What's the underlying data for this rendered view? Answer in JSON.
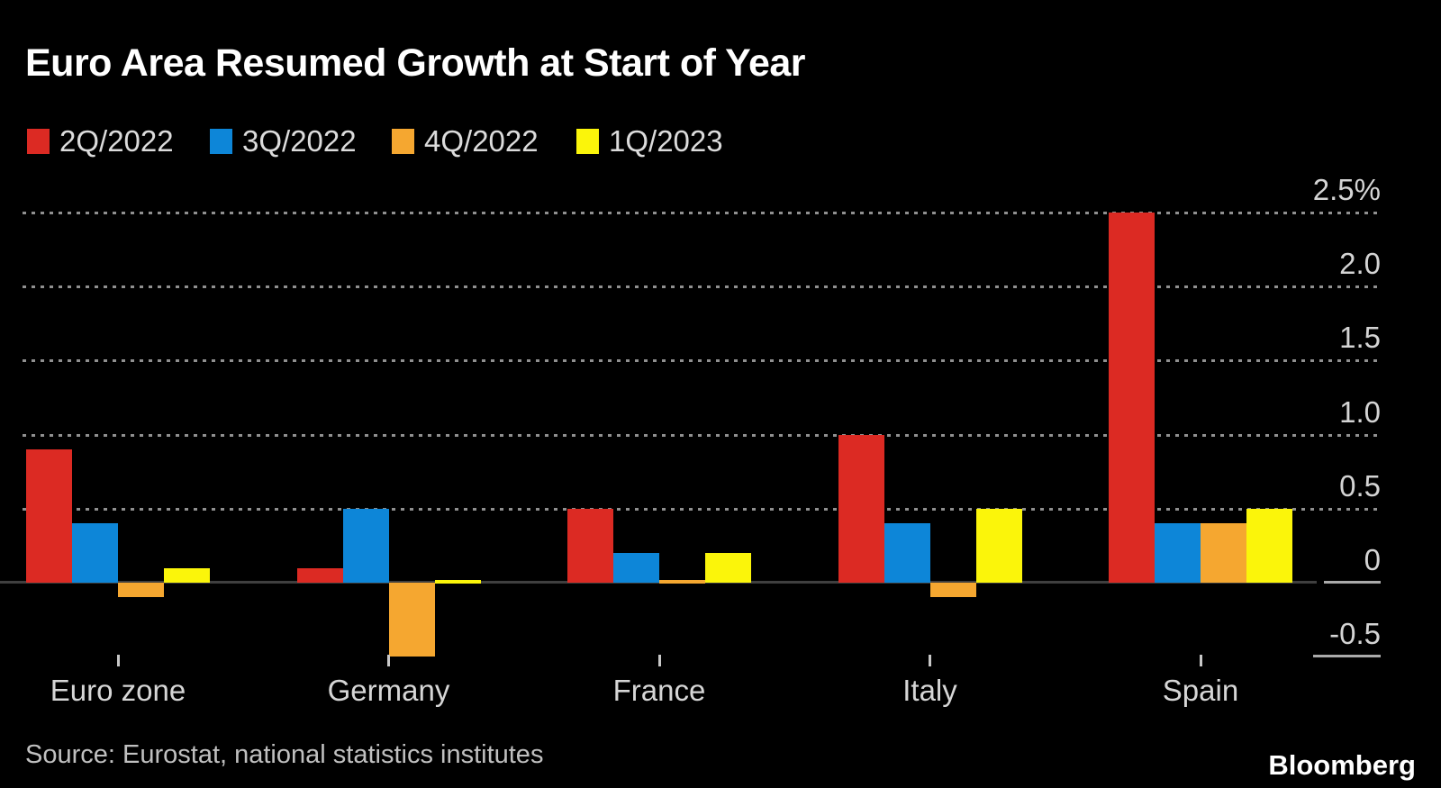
{
  "title": "Euro Area Resumed Growth at Start of Year",
  "legend": [
    {
      "label": "2Q/2022",
      "color": "#dc2a23"
    },
    {
      "label": "3Q/2022",
      "color": "#0d86d8"
    },
    {
      "label": "4Q/2022",
      "color": "#f5a730"
    },
    {
      "label": "1Q/2023",
      "color": "#fbf50a"
    }
  ],
  "chart_data": {
    "type": "bar",
    "unit": "%",
    "categories": [
      "Euro zone",
      "Germany",
      "France",
      "Italy",
      "Spain"
    ],
    "series": [
      {
        "name": "2Q/2022",
        "color": "#dc2a23",
        "values": [
          0.9,
          0.1,
          0.5,
          1.0,
          2.5
        ]
      },
      {
        "name": "3Q/2022",
        "color": "#0d86d8",
        "values": [
          0.4,
          0.5,
          0.2,
          0.4,
          0.4
        ]
      },
      {
        "name": "4Q/2022",
        "color": "#f5a730",
        "values": [
          -0.1,
          -0.5,
          0.0,
          -0.1,
          0.4
        ]
      },
      {
        "name": "1Q/2023",
        "color": "#fbf50a",
        "values": [
          0.1,
          0.0,
          0.2,
          0.5,
          0.5
        ]
      }
    ],
    "ylim": [
      -0.5,
      2.5
    ],
    "y_axis": {
      "ticks": [
        {
          "label": "2.5%",
          "value": 2.5
        },
        {
          "label": "2.0",
          "value": 2.0
        },
        {
          "label": "1.5",
          "value": 1.5
        },
        {
          "label": "1.0",
          "value": 1.0
        },
        {
          "label": "0.5",
          "value": 0.5
        },
        {
          "label": "0",
          "value": 0
        },
        {
          "label": "-0.5",
          "value": -0.5
        }
      ],
      "gridline_values": [
        2.5,
        2.0,
        1.5,
        1.0,
        0.5
      ],
      "grid_style": "dotted",
      "position": "right"
    },
    "legend_position": "top",
    "background": "#000000"
  },
  "source": "Source: Eurostat, national statistics institutes",
  "brand": "Bloomberg"
}
